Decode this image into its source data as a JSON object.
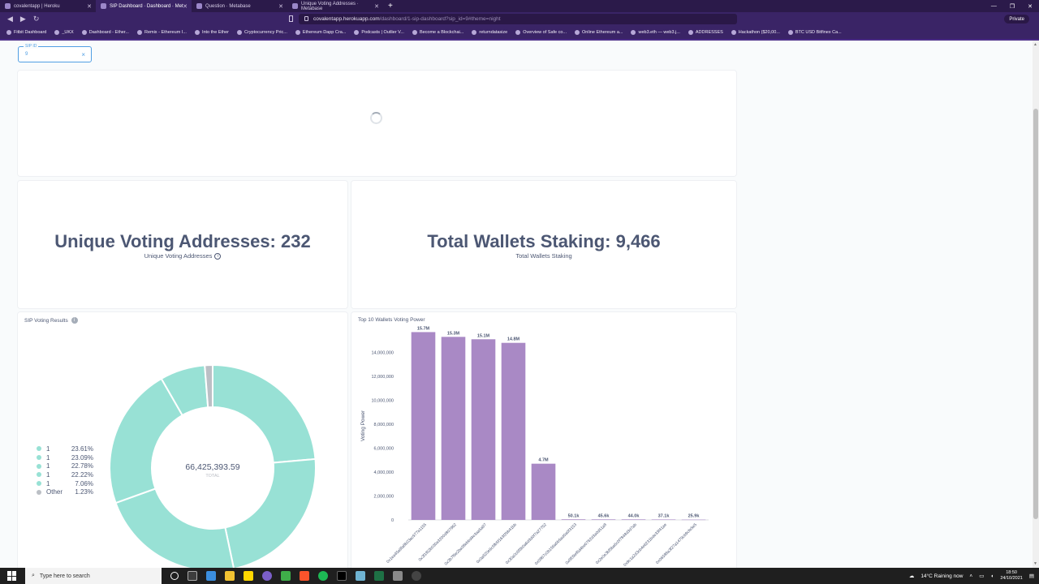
{
  "browser": {
    "tabs": [
      {
        "title": "covalentapp | Heroku",
        "active": false
      },
      {
        "title": "SIP Dashboard · Dashboard · Met",
        "active": true
      },
      {
        "title": "Question · Metabase",
        "active": false
      },
      {
        "title": "Unique Voting Addresses · Metabase",
        "active": false
      }
    ],
    "url_host": "covalentapp.herokuapp.com",
    "url_path": "/dashboard/1-sip-dashboard?sip_id=9#theme=night",
    "private_label": "Private",
    "bookmarks": [
      "Fitbit Dashboard",
      "_UKX",
      "Dashboard - Ether...",
      "Remix - Ethereum I...",
      "Into the Ether",
      "Cryptocurrency Pric...",
      "Ethereum Dapp Cra...",
      "Podcasts | Outlier V...",
      "Become a Blockchai...",
      "returndatasize",
      "Overview of Safe co...",
      "Online Ethereum a...",
      "web3.eth — web3.j...",
      "ADDRESSES",
      "Hackathon ($20,00...",
      "BTC USD Bitfinex Ca..."
    ]
  },
  "filter": {
    "label": "SIP ID",
    "value": "9"
  },
  "scalars": {
    "unique": {
      "value": "Unique Voting Addresses: 232",
      "subtitle": "Unique Voting Addresses"
    },
    "staking": {
      "value": "Total Wallets Staking: 9,466",
      "subtitle": "Total Wallets Staking"
    }
  },
  "donut": {
    "title": "SIP Voting Results",
    "total": "66,425,393.59",
    "total_label": "TOTAL",
    "legend": [
      {
        "name": "1",
        "pct": "23.61%",
        "color": "#98e1d5"
      },
      {
        "name": "1",
        "pct": "23.09%",
        "color": "#98e1d5"
      },
      {
        "name": "1",
        "pct": "22.78%",
        "color": "#98e1d5"
      },
      {
        "name": "1",
        "pct": "22.22%",
        "color": "#98e1d5"
      },
      {
        "name": "1",
        "pct": "7.06%",
        "color": "#98e1d5"
      },
      {
        "name": "Other",
        "pct": "1.23%",
        "color": "#bbbfc5"
      }
    ]
  },
  "chart_data": {
    "type": "bar",
    "title": "Top 10 Wallets Voting Power",
    "ylabel": "Voting Power",
    "ylim": [
      0,
      16000000
    ],
    "yticks": [
      "0",
      "2,000,000",
      "4,000,000",
      "6,000,000",
      "8,000,000",
      "10,000,000",
      "12,000,000",
      "14,000,000"
    ],
    "ytick_values": [
      0,
      2000000,
      4000000,
      6000000,
      8000000,
      10000000,
      12000000,
      14000000
    ],
    "categories": [
      "0x1ea45a9fa8b03ac977a1155",
      "0x3f1f62b030a3200d807962",
      "0x3b7f9e2ba38ebbd4e3aa5a97",
      "0x0a820e9c5fb5f163f2bb41bb",
      "0x30a0c6f3b0a6d3d0f7a27752",
      "0x0867c0b156a0b5ad0a0f3153",
      "0x8f09ef6d4be0762d3a0d51a8",
      "0x2e0e3bf5ba6c0f7848d3d7ab",
      "0x9c1a2d3cb4e6231bde33f41ae",
      "0x06588a3f27a1479cb9cfe5e5"
    ],
    "values": [
      15700000,
      15300000,
      15100000,
      14800000,
      4700000,
      50100,
      45600,
      44000,
      37100,
      25900
    ],
    "value_labels": [
      "15.7M",
      "15.3M",
      "15.1M",
      "14.8M",
      "4.7M",
      "50.1k",
      "45.6k",
      "44.0k",
      "37.1k",
      "25.9k"
    ],
    "color": "#a989c5"
  },
  "taskbar": {
    "search_placeholder": "Type here to search",
    "weather": "14°C  Raining now",
    "time": "18:50",
    "date": "24/10/2021"
  }
}
